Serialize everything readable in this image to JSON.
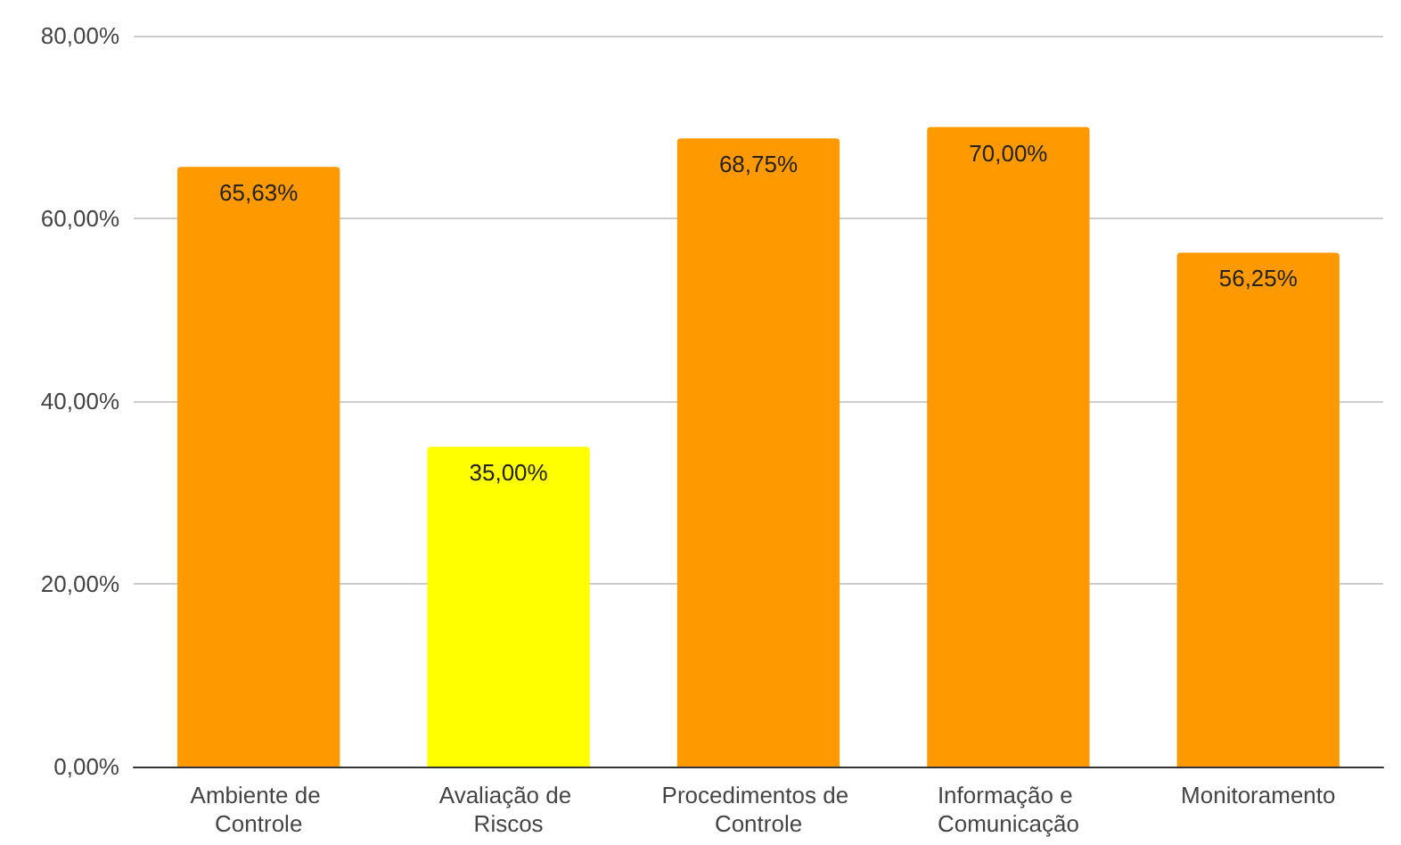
{
  "chart_data": {
    "type": "bar",
    "categories": [
      "Ambiente de Controle",
      "Avaliação de Riscos",
      "Procedimentos de Controle",
      "Informação e Comunicação",
      "Monitoramento"
    ],
    "values": [
      65.63,
      35.0,
      68.75,
      70.0,
      56.25
    ],
    "colors": [
      "#ff9900",
      "#ffff00",
      "#ff9900",
      "#ff9900",
      "#ff9900"
    ],
    "value_labels": [
      "65,63%",
      "35,00%",
      "68,75%",
      "70,00%",
      "56,25%"
    ],
    "ylim": [
      0,
      80
    ],
    "yticks": [
      {
        "value": 0,
        "label": "0,00%"
      },
      {
        "value": 20,
        "label": "20,00%"
      },
      {
        "value": 40,
        "label": "40,00%"
      },
      {
        "value": 60,
        "label": "60,00%"
      },
      {
        "value": 80,
        "label": "80,00%"
      }
    ],
    "grid": "y"
  }
}
